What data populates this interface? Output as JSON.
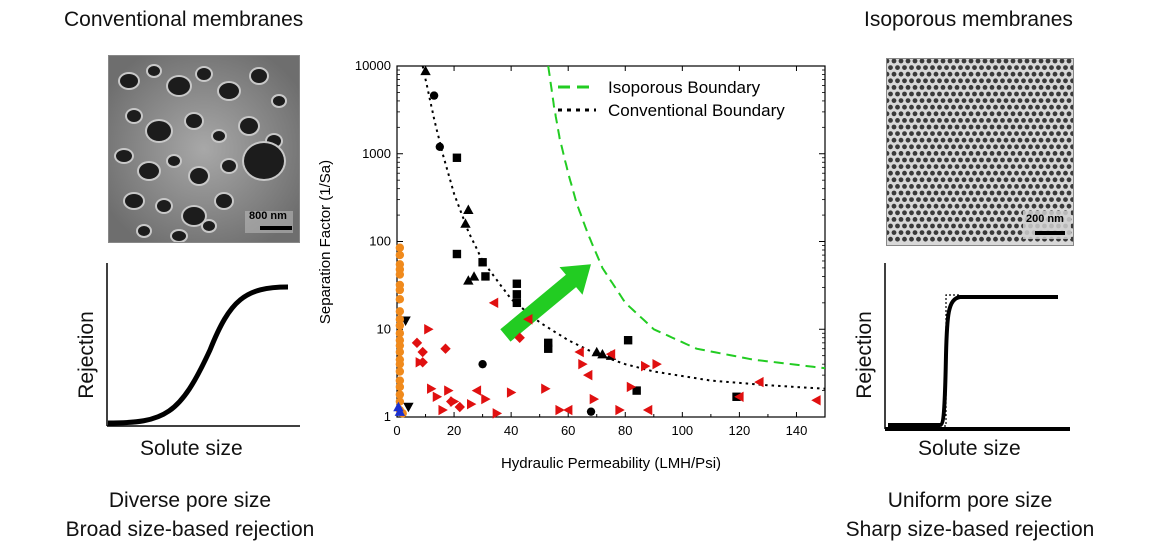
{
  "left_panel": {
    "title": "Conventional membranes",
    "scale_bar_label": "800 nm",
    "curve_ylabel": "Rejection",
    "curve_xlabel": "Solute size",
    "caption_line1": "Diverse pore size",
    "caption_line2": "Broad size-based rejection"
  },
  "right_panel": {
    "title": "Isoporous membranes",
    "scale_bar_label": "200 nm",
    "curve_ylabel": "Rejection",
    "curve_xlabel": "Solute size",
    "caption_line1": "Uniform pore size",
    "caption_line2": "Sharp size-based rejection"
  },
  "colors": {
    "isoporous_boundary": "#22cc22",
    "conventional_boundary": "#000000",
    "arrow": "#22cc22",
    "black_markers": "#000000",
    "red_markers": "#e01010",
    "orange_markers": "#f08a1c",
    "blue_markers": "#1a2fd0"
  },
  "chart_data": {
    "type": "scatter",
    "xlabel": "Hydraulic Permeability (LMH/Psi)",
    "ylabel": "Separation Factor (1/Sa)",
    "xlim": [
      0,
      150
    ],
    "ylim": [
      1,
      10000
    ],
    "yscale": "log",
    "x_ticks": [
      0,
      20,
      40,
      60,
      80,
      100,
      120,
      140
    ],
    "x_tick_labels": [
      "0",
      "20",
      "40",
      "60",
      "80",
      "100",
      "120",
      "140"
    ],
    "y_ticks": [
      1,
      10,
      100,
      1000,
      10000
    ],
    "y_tick_labels": [
      "1",
      "10",
      "100",
      "1000",
      "10000"
    ],
    "legend_position": "top-right",
    "lines": [
      {
        "name": "Isoporous Boundary",
        "style": "dashed",
        "color": "#22cc22",
        "points": [
          [
            53,
            10000
          ],
          [
            55,
            3500
          ],
          [
            57,
            1500
          ],
          [
            60,
            600
          ],
          [
            63,
            270
          ],
          [
            67,
            120
          ],
          [
            72,
            50
          ],
          [
            80,
            20
          ],
          [
            90,
            10
          ],
          [
            105,
            6
          ],
          [
            125,
            4.5
          ],
          [
            150,
            3.6
          ]
        ]
      },
      {
        "name": "Conventional Boundary",
        "style": "dotted",
        "color": "#000000",
        "points": [
          [
            9,
            10000
          ],
          [
            11,
            5000
          ],
          [
            13,
            2500
          ],
          [
            16,
            1000
          ],
          [
            20,
            350
          ],
          [
            25,
            130
          ],
          [
            30,
            60
          ],
          [
            40,
            22
          ],
          [
            50,
            12
          ],
          [
            60,
            7.5
          ],
          [
            70,
            5.2
          ],
          [
            80,
            4
          ],
          [
            90,
            3.3
          ],
          [
            110,
            2.6
          ],
          [
            130,
            2.3
          ],
          [
            150,
            2.1
          ]
        ]
      }
    ],
    "series": [
      {
        "marker": "triangle-up",
        "color": "#000000",
        "points": [
          [
            10,
            8800
          ],
          [
            25,
            230
          ],
          [
            24,
            160
          ],
          [
            25,
            36
          ],
          [
            27,
            40
          ],
          [
            70,
            5.5
          ],
          [
            72,
            5.2
          ],
          [
            75,
            5
          ]
        ]
      },
      {
        "marker": "circle",
        "color": "#000000",
        "points": [
          [
            13,
            4600
          ],
          [
            15,
            1200
          ],
          [
            30,
            4
          ],
          [
            68,
            1.15
          ]
        ]
      },
      {
        "marker": "square",
        "color": "#000000",
        "points": [
          [
            21,
            900
          ],
          [
            21,
            72
          ],
          [
            30,
            58
          ],
          [
            31,
            40
          ],
          [
            42,
            33
          ],
          [
            42,
            25
          ],
          [
            42,
            20
          ],
          [
            53,
            7
          ],
          [
            53,
            6
          ],
          [
            81,
            7.5
          ],
          [
            84,
            2
          ],
          [
            119,
            1.7
          ]
        ]
      },
      {
        "marker": "triangle-down",
        "color": "#000000",
        "points": [
          [
            4,
            1.3
          ],
          [
            3,
            12.5
          ]
        ]
      },
      {
        "marker": "diamond",
        "color": "#e01010",
        "points": [
          [
            7,
            7
          ],
          [
            9,
            5.5
          ],
          [
            9,
            4.2
          ],
          [
            17,
            6
          ],
          [
            19,
            1.5
          ],
          [
            22,
            1.3
          ],
          [
            43,
            8
          ]
        ]
      },
      {
        "marker": "triangle-right",
        "color": "#e01010",
        "points": [
          [
            8,
            4.2
          ],
          [
            11,
            10
          ],
          [
            12,
            2.1
          ],
          [
            14,
            1.7
          ],
          [
            16,
            1.2
          ],
          [
            18,
            2
          ],
          [
            20,
            1.5
          ],
          [
            26,
            1.4
          ],
          [
            31,
            1.6
          ],
          [
            35,
            1.1
          ],
          [
            40,
            1.9
          ],
          [
            52,
            2.1
          ],
          [
            57,
            1.2
          ],
          [
            65,
            4
          ],
          [
            69,
            1.6
          ],
          [
            78,
            1.2
          ],
          [
            82,
            2.2
          ],
          [
            87,
            3.8
          ],
          [
            91,
            4
          ]
        ]
      },
      {
        "marker": "triangle-left",
        "color": "#e01010",
        "points": [
          [
            34,
            20
          ],
          [
            28,
            2
          ],
          [
            46,
            13
          ],
          [
            64,
            5.5
          ],
          [
            67,
            3
          ],
          [
            75,
            5.2
          ],
          [
            60,
            1.2
          ],
          [
            88,
            1.2
          ],
          [
            120,
            1.7
          ],
          [
            127,
            2.5
          ],
          [
            147,
            1.55
          ]
        ]
      },
      {
        "marker": "circle",
        "color": "#f08a1c",
        "points": [
          [
            1,
            85
          ],
          [
            1,
            70
          ],
          [
            1,
            55
          ],
          [
            1,
            48
          ],
          [
            1,
            42
          ],
          [
            1,
            32
          ],
          [
            1,
            28
          ],
          [
            1,
            22
          ],
          [
            1,
            16
          ],
          [
            1,
            13
          ],
          [
            1,
            11
          ],
          [
            1,
            9
          ],
          [
            1,
            7.5
          ],
          [
            1,
            6.5
          ],
          [
            1,
            5.5
          ],
          [
            1,
            4.5
          ],
          [
            1,
            4
          ],
          [
            1,
            3.3
          ],
          [
            1,
            2.6
          ],
          [
            1,
            2.2
          ],
          [
            1,
            1.8
          ],
          [
            1,
            1.5
          ],
          [
            1,
            1.2
          ],
          [
            2,
            1.1
          ]
        ]
      },
      {
        "marker": "triangle-up",
        "color": "#1a2fd0",
        "points": [
          [
            0.5,
            1.3
          ],
          [
            1,
            1.15
          ]
        ]
      }
    ]
  }
}
